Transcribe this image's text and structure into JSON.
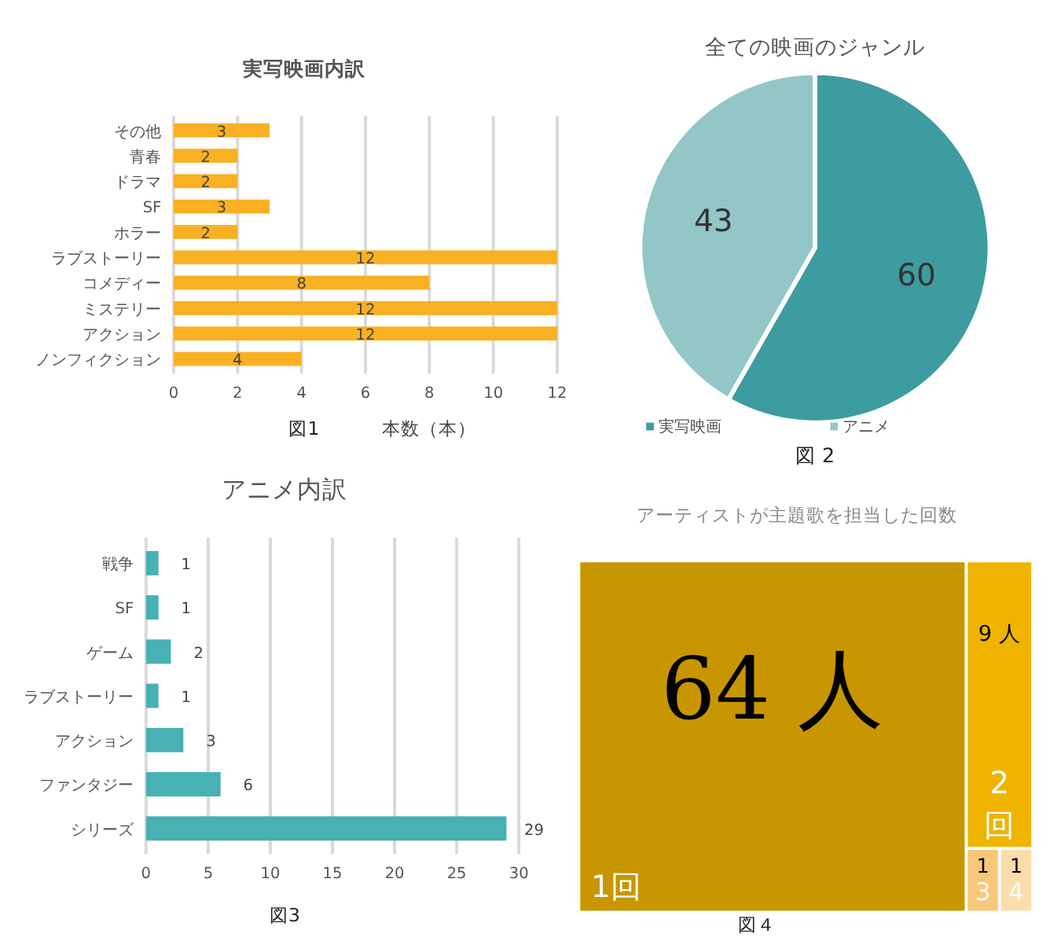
{
  "chart_data": [
    {
      "type": "bar",
      "orientation": "horizontal",
      "title": "実写映画内訳",
      "xlabel": "本数（本）",
      "annotations": [
        "図1"
      ],
      "categories": [
        "その他",
        "青春",
        "ドラマ",
        "SF",
        "ホラー",
        "ラブストーリー",
        "コメディー",
        "ミステリー",
        "アクション",
        "ノンフィクション"
      ],
      "values": [
        3,
        2,
        2,
        3,
        2,
        12,
        8,
        12,
        12,
        4
      ],
      "color": "#f9b022",
      "xlim": [
        0,
        12
      ],
      "xticks": [
        0,
        2,
        4,
        6,
        8,
        10,
        12
      ],
      "grid": "x",
      "data_labels": true
    },
    {
      "type": "pie",
      "title": "全ての映画のジャンル",
      "annotations": [
        "図 2"
      ],
      "categories": [
        "実写映画",
        "アニメ"
      ],
      "values": [
        60,
        43
      ],
      "colors": [
        "#3d9c9f",
        "#92c6c7"
      ],
      "legend": "bottom",
      "data_labels": true
    },
    {
      "type": "bar",
      "orientation": "horizontal",
      "title": "アニメ内訳",
      "annotations": [
        "図3"
      ],
      "categories": [
        "戦争",
        "SF",
        "ゲーム",
        "ラブストーリー",
        "アクション",
        "ファンタジー",
        "シリーズ"
      ],
      "values": [
        1,
        1,
        2,
        1,
        3,
        6,
        29
      ],
      "color": "#47b1b3",
      "xlim": [
        0,
        30
      ],
      "xticks": [
        0,
        5,
        10,
        15,
        20,
        25,
        30
      ],
      "grid": "x",
      "data_labels": true
    },
    {
      "type": "other",
      "title": "アーティストが主題歌を担当した回数",
      "annotations": [
        "図４"
      ],
      "categories": [
        "1回",
        "2回",
        "3",
        "4"
      ],
      "values": [
        64,
        9,
        1,
        1
      ],
      "value_labels": [
        "64 人",
        "9 人",
        "1",
        "1"
      ],
      "colors": [
        "#c89600",
        "#eeb400",
        "#f8c878",
        "#fcdcaa"
      ]
    }
  ]
}
